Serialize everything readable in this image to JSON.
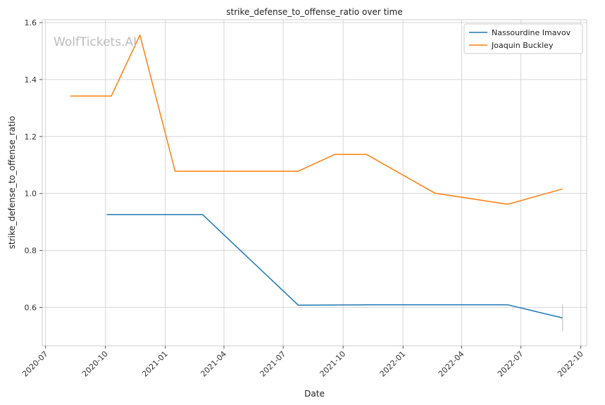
{
  "chart_data": {
    "type": "line",
    "title": "strike_defense_to_offense_ratio over time",
    "xlabel": "Date",
    "ylabel": "strike_defense_to_offense_ratio",
    "watermark": "WolfTickets.AI",
    "x_axis_type": "date",
    "xlim": [
      "2020-06-26",
      "2022-10-10"
    ],
    "ylim": [
      0.465,
      1.61
    ],
    "x_ticks": [
      "2020-07",
      "2020-10",
      "2021-01",
      "2021-04",
      "2021-07",
      "2021-10",
      "2022-01",
      "2022-04",
      "2022-07",
      "2022-10"
    ],
    "x_tick_dates": [
      "2020-07-01",
      "2020-10-01",
      "2021-01-01",
      "2021-04-01",
      "2021-07-01",
      "2021-10-01",
      "2022-01-01",
      "2022-04-01",
      "2022-07-01",
      "2022-10-01"
    ],
    "y_ticks": [
      "0.6",
      "0.8",
      "1.0",
      "1.2",
      "1.4",
      "1.6"
    ],
    "y_tick_values": [
      0.6,
      0.8,
      1.0,
      1.2,
      1.4,
      1.6
    ],
    "grid": true,
    "legend_position": "top-right",
    "series": [
      {
        "name": "Nassourdine Imavov",
        "color": "#1f77b4",
        "points": [
          {
            "x": "2020-10-03",
            "y": 0.926
          },
          {
            "x": "2021-02-27",
            "y": 0.926
          },
          {
            "x": "2021-07-24",
            "y": 0.608
          },
          {
            "x": "2021-11-06",
            "y": 0.609
          },
          {
            "x": "2022-06-11",
            "y": 0.609
          },
          {
            "x": "2022-09-03",
            "y": 0.563
          }
        ],
        "error_bar": {
          "x": "2022-09-03",
          "low": 0.516,
          "high": 0.61
        }
      },
      {
        "name": "Joaquin Buckley",
        "color": "#ff7f0e",
        "points": [
          {
            "x": "2020-08-08",
            "y": 1.342
          },
          {
            "x": "2020-10-10",
            "y": 1.342
          },
          {
            "x": "2020-11-23",
            "y": 1.556
          },
          {
            "x": "2021-01-16",
            "y": 1.078
          },
          {
            "x": "2021-07-24",
            "y": 1.078
          },
          {
            "x": "2021-09-18",
            "y": 1.137
          },
          {
            "x": "2021-11-06",
            "y": 1.137
          },
          {
            "x": "2022-02-19",
            "y": 1.001
          },
          {
            "x": "2022-06-11",
            "y": 0.962
          },
          {
            "x": "2022-09-03",
            "y": 1.016
          }
        ]
      }
    ]
  }
}
